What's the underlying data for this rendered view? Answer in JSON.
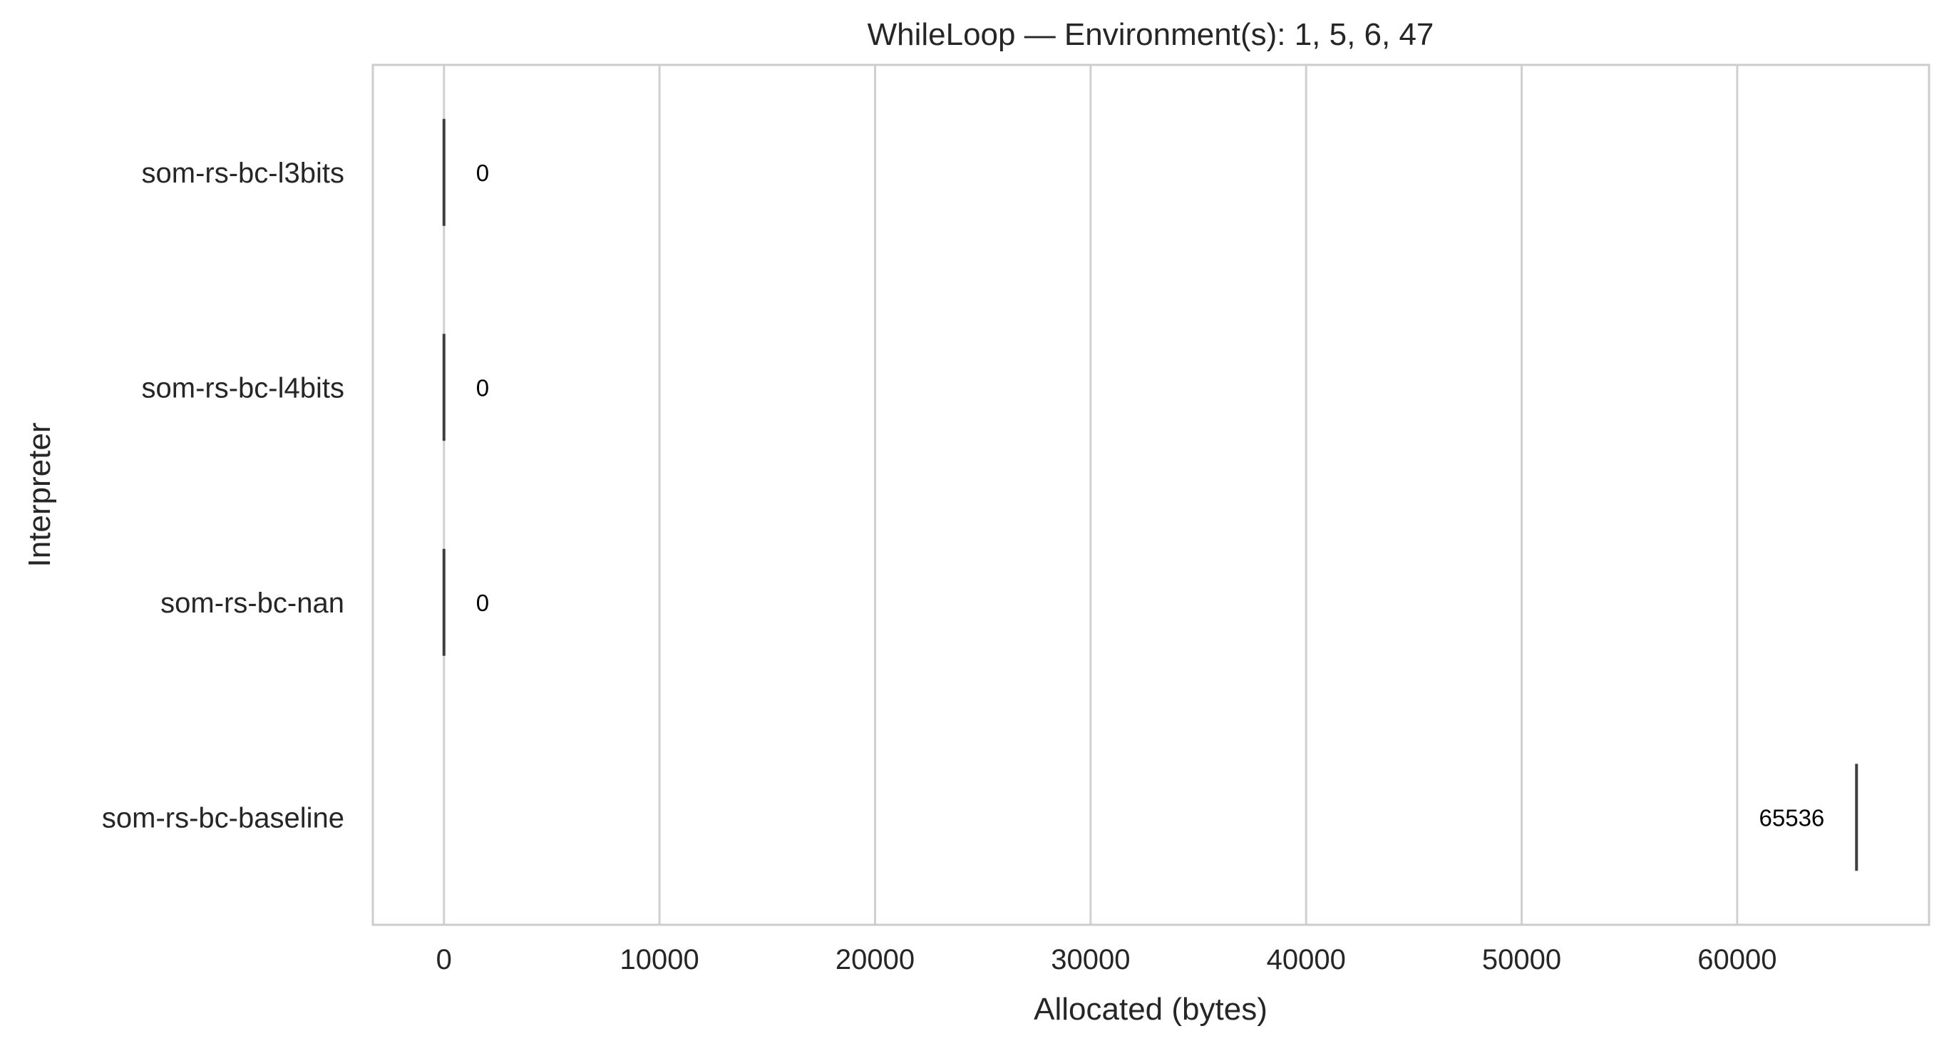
{
  "chart_data": {
    "type": "box",
    "title": "WhileLoop — Environment(s): 1, 5, 6, 47",
    "xlabel": "Allocated (bytes)",
    "ylabel": "Interpreter",
    "xlim": [
      -3300,
      68900
    ],
    "xticks": [
      0,
      10000,
      20000,
      30000,
      40000,
      50000,
      60000
    ],
    "orientation": "horizontal",
    "grid": "vertical",
    "categories": [
      "som-rs-bc-l3bits",
      "som-rs-bc-l4bits",
      "som-rs-bc-nan",
      "som-rs-bc-baseline"
    ],
    "values": [
      0,
      0,
      0,
      65536
    ],
    "data_labels": [
      "0",
      "0",
      "0",
      "65536"
    ],
    "colors": {
      "box_line": "#3f3f3f",
      "grid": "#d0d0d0",
      "spine": "#cccccc",
      "text": "#262626"
    }
  }
}
